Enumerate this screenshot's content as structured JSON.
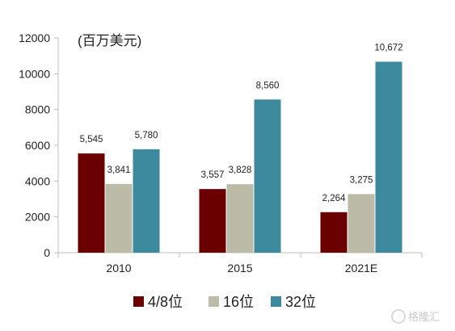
{
  "chart_data": {
    "type": "bar",
    "unit_label": "(百万美元)",
    "categories": [
      "2010",
      "2015",
      "2021E"
    ],
    "series": [
      {
        "name": "4/8位",
        "color": "#6b0000",
        "values": [
          5545,
          3557,
          2264
        ],
        "labels": [
          "5,545",
          "3,557",
          "2,264"
        ]
      },
      {
        "name": "16位",
        "color": "#bcbba8",
        "values": [
          3841,
          3828,
          3275
        ],
        "labels": [
          "3,841",
          "3,828",
          "3,275"
        ]
      },
      {
        "name": "32位",
        "color": "#3d8a9e",
        "values": [
          5780,
          8560,
          10672
        ],
        "labels": [
          "5,780",
          "8,560",
          "10,672"
        ]
      }
    ],
    "yticks": [
      0,
      2000,
      4000,
      6000,
      8000,
      10000,
      12000
    ],
    "ylim": [
      0,
      12000
    ],
    "grid": false,
    "legend_position": "bottom"
  },
  "watermark": {
    "text": "格隆汇"
  }
}
